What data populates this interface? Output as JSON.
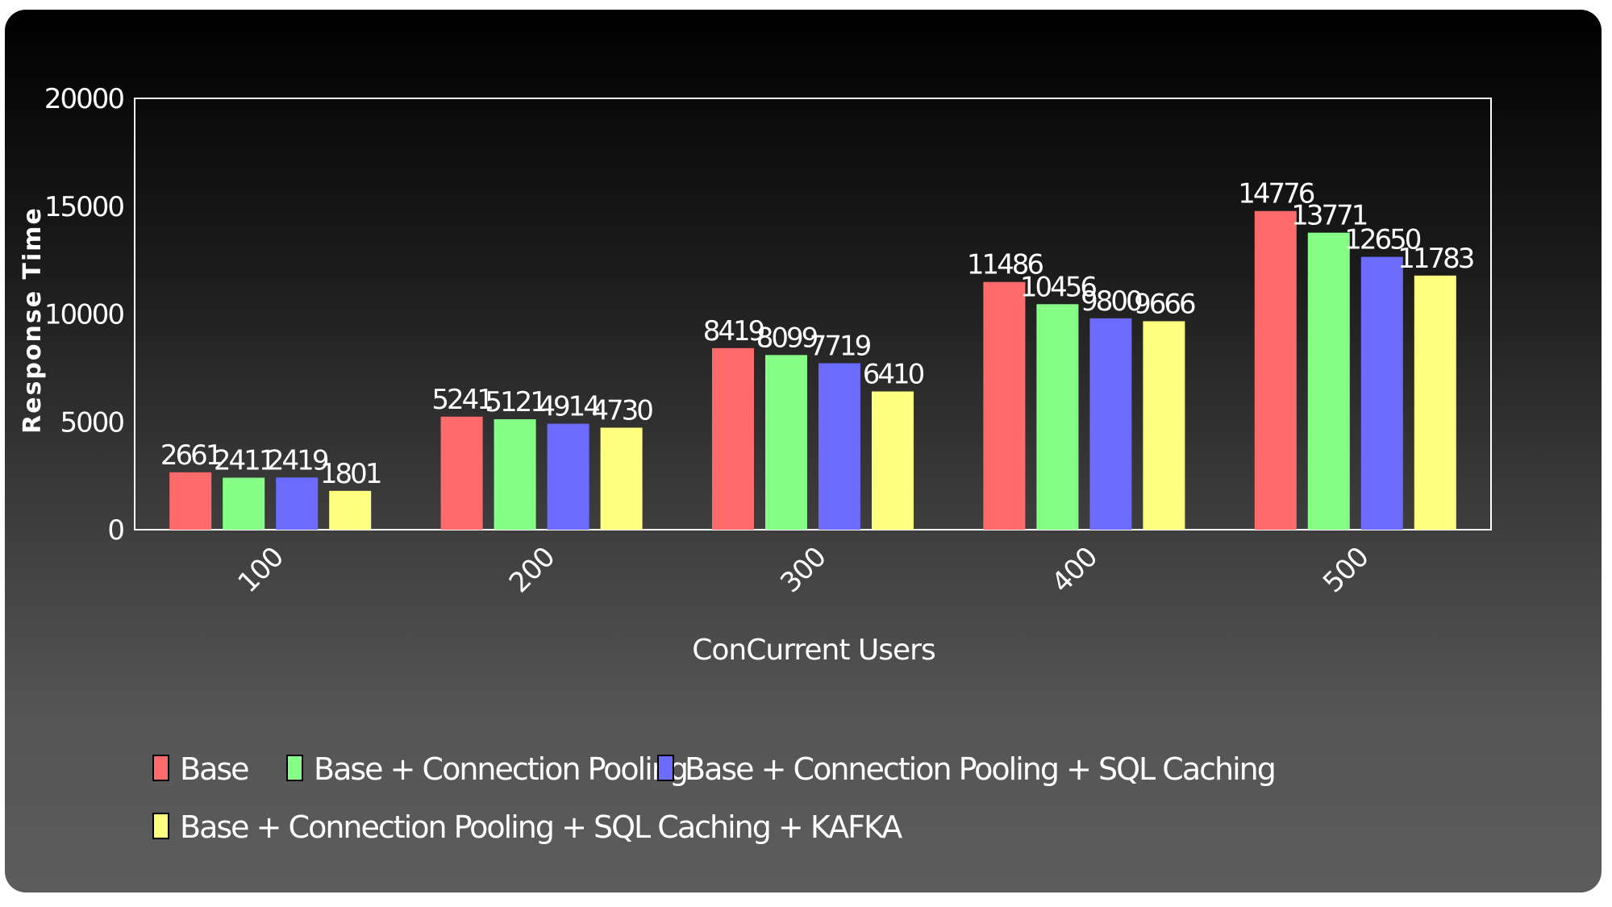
{
  "chart_data": {
    "type": "bar",
    "xlabel": "ConCurrent Users",
    "ylabel": "Response Time",
    "categories": [
      "100",
      "200",
      "300",
      "400",
      "500"
    ],
    "ylim": [
      0,
      20000
    ],
    "yticks": [
      0,
      5000,
      10000,
      15000,
      20000
    ],
    "grid": false,
    "legend_position": "bottom",
    "series": [
      {
        "name": "Base",
        "color": "#ff6b6b",
        "values": [
          2661,
          5241,
          8419,
          11486,
          14776
        ]
      },
      {
        "name": "Base + Connection Pooling",
        "color": "#86ff86",
        "values": [
          2411,
          5121,
          8099,
          10456,
          13771
        ]
      },
      {
        "name": "Base + Connection Pooling + SQL Caching",
        "color": "#6b6bff",
        "values": [
          2419,
          4914,
          7719,
          9800,
          12650
        ]
      },
      {
        "name": "Base + Connection Pooling + SQL Caching + KAFKA",
        "color": "#ffff80",
        "values": [
          1801,
          4730,
          6410,
          9666,
          11783
        ]
      }
    ]
  }
}
